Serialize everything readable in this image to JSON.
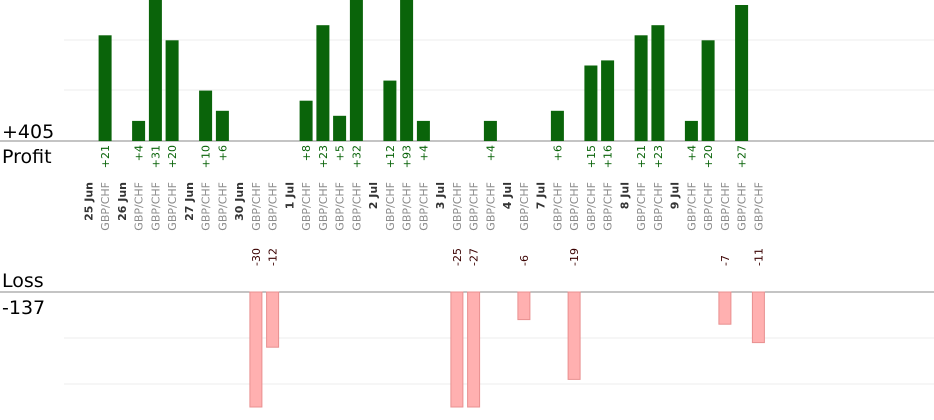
{
  "chart_data": {
    "type": "bar",
    "profit": {
      "total_label": "+405",
      "label": "Profit",
      "color": "#0a640a",
      "text_color": "#0a640a",
      "ylim": [
        0,
        28
      ]
    },
    "loss": {
      "total_label": "-137",
      "label": "Loss",
      "color": "#ffb0b0",
      "stroke": "#e89090",
      "text_color": "#3a0000",
      "ylim": [
        0,
        25
      ]
    },
    "groups": [
      {
        "date": "25 Jun",
        "trades": [
          {
            "pair": "GBP/CHF",
            "value": 21
          }
        ]
      },
      {
        "date": "26 Jun",
        "trades": [
          {
            "pair": "GBP/CHF",
            "value": 4
          },
          {
            "pair": "GBP/CHF",
            "value": 31
          },
          {
            "pair": "GBP/CHF",
            "value": 20
          }
        ]
      },
      {
        "date": "27 Jun",
        "trades": [
          {
            "pair": "GBP/CHF",
            "value": 10
          },
          {
            "pair": "GBP/CHF",
            "value": 6
          }
        ]
      },
      {
        "date": "30 Jun",
        "trades": [
          {
            "pair": "GBP/CHF",
            "value": -30
          },
          {
            "pair": "GBP/CHF",
            "value": -12
          }
        ]
      },
      {
        "date": "1 Jul",
        "trades": [
          {
            "pair": "GBP/CHF",
            "value": 8
          },
          {
            "pair": "GBP/CHF",
            "value": 23
          },
          {
            "pair": "GBP/CHF",
            "value": 5
          },
          {
            "pair": "GBP/CHF",
            "value": 32
          }
        ]
      },
      {
        "date": "2 Jul",
        "trades": [
          {
            "pair": "GBP/CHF",
            "value": 12
          },
          {
            "pair": "GBP/CHF",
            "value": 93
          },
          {
            "pair": "GBP/CHF",
            "value": 4
          }
        ]
      },
      {
        "date": "3 Jul",
        "trades": [
          {
            "pair": "GBP/CHF",
            "value": -25
          },
          {
            "pair": "GBP/CHF",
            "value": -27
          },
          {
            "pair": "GBP/CHF",
            "value": 4
          }
        ]
      },
      {
        "date": "4 Jul",
        "trades": [
          {
            "pair": "GBP/CHF",
            "value": -6
          }
        ]
      },
      {
        "date": "7 Jul",
        "trades": [
          {
            "pair": "GBP/CHF",
            "value": 6
          },
          {
            "pair": "GBP/CHF",
            "value": -19
          },
          {
            "pair": "GBP/CHF",
            "value": 15
          },
          {
            "pair": "GBP/CHF",
            "value": 16
          }
        ]
      },
      {
        "date": "8 Jul",
        "trades": [
          {
            "pair": "GBP/CHF",
            "value": 21
          },
          {
            "pair": "GBP/CHF",
            "value": 23
          }
        ]
      },
      {
        "date": "9 Jul",
        "trades": [
          {
            "pair": "GBP/CHF",
            "value": 4
          },
          {
            "pair": "GBP/CHF",
            "value": 20
          },
          {
            "pair": "GBP/CHF",
            "value": -7
          },
          {
            "pair": "GBP/CHF",
            "value": 27
          },
          {
            "pair": "GBP/CHF",
            "value": -11
          }
        ]
      }
    ]
  }
}
